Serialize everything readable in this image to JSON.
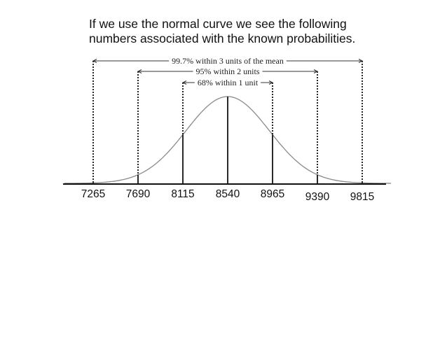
{
  "heading": {
    "line1": "If we use the normal curve we see the following",
    "line2": "numbers associated with the known probabilities."
  },
  "diagram": {
    "mean": 8540,
    "sd": 425,
    "x_ticks": [
      "7265",
      "7690",
      "8115",
      "8540",
      "8965",
      "9390",
      "9815"
    ],
    "brackets": [
      {
        "label": "99.7% within 3 units of the mean",
        "k": 3
      },
      {
        "label": "95% within 2 units",
        "k": 2
      },
      {
        "label": "68% within 1 unit",
        "k": 1
      }
    ],
    "colors": {
      "curve": "#8a8a8a",
      "lines": "#111111"
    }
  }
}
